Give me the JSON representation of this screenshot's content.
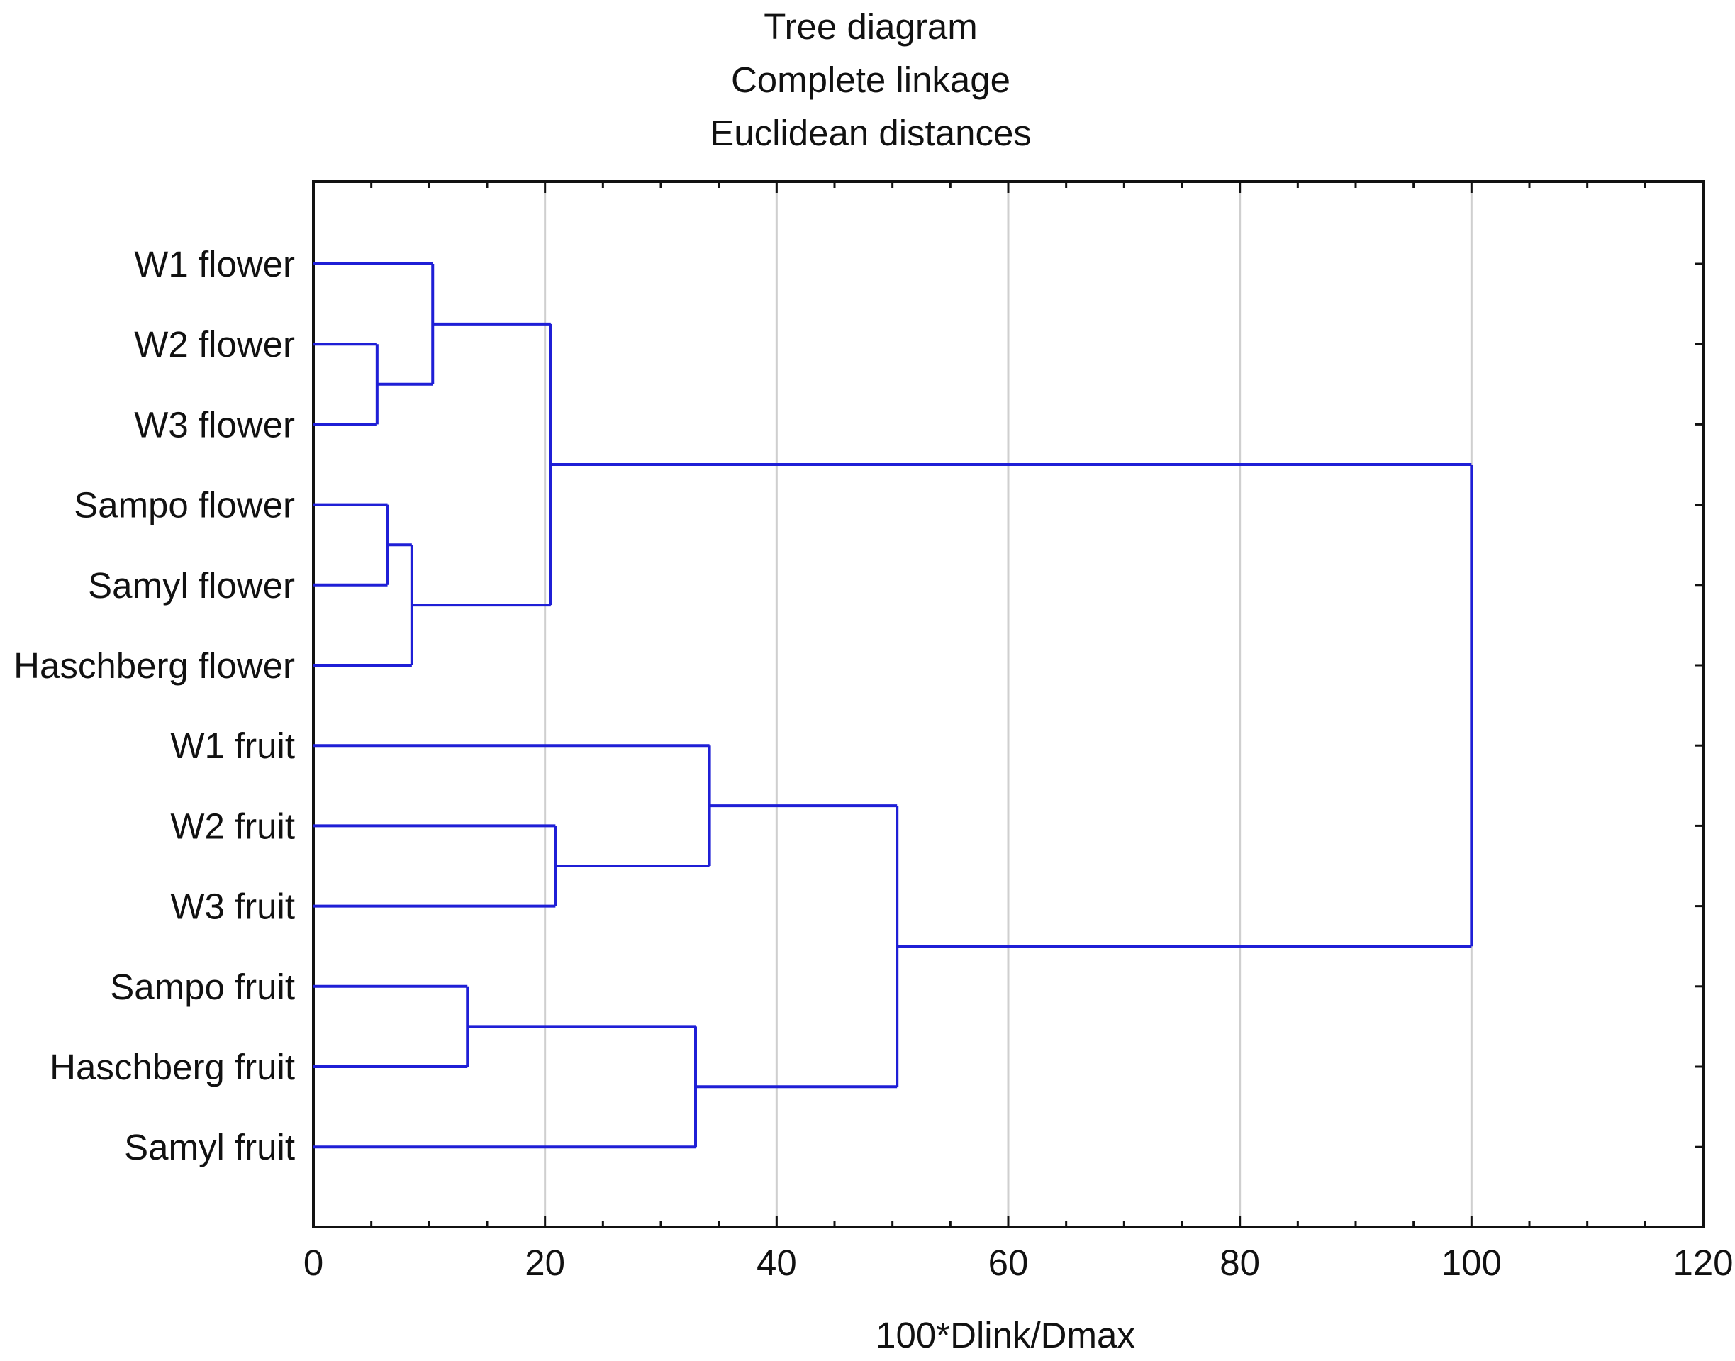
{
  "chart_data": {
    "type": "dendrogram",
    "title": [
      "Tree diagram",
      "Complete linkage",
      "Euclidean distances"
    ],
    "xlabel": "100*Dlink/Dmax",
    "ylabel": "",
    "xlim": [
      0,
      120
    ],
    "x_ticks": [
      0,
      20,
      40,
      60,
      80,
      100,
      120
    ],
    "x_tick_labels": [
      "0",
      "20",
      "40",
      "60",
      "80",
      "100",
      "120"
    ],
    "grid": true,
    "orientation": "horizontal",
    "leaves": [
      "W1 flower",
      "W2 flower",
      "W3 flower",
      "Sampo flower",
      "Samyl flower",
      "Haschberg flower",
      "W1 fruit",
      "W2 fruit",
      "W3 fruit",
      "Sampo fruit",
      "Haschberg fruit",
      "Samyl fruit"
    ],
    "merges": [
      {
        "a": "W2 flower",
        "b": "W3 flower",
        "height": 5.5
      },
      {
        "a": "Sampo flower",
        "b": "Samyl flower",
        "height": 6.4
      },
      {
        "a": "Sampo flower+Samyl flower",
        "b": "Haschberg flower",
        "height": 8.5
      },
      {
        "a": "W1 flower",
        "b": "W2 flower+W3 flower",
        "height": 10.3
      },
      {
        "a": "Sampo fruit",
        "b": "Haschberg fruit",
        "height": 13.3
      },
      {
        "a": "W1 flower group",
        "b": "Sampo flower group",
        "height": 20.5
      },
      {
        "a": "W2 fruit",
        "b": "W3 fruit",
        "height": 20.9
      },
      {
        "a": "Sampo fruit+Haschberg fruit",
        "b": "Samyl fruit",
        "height": 33.0
      },
      {
        "a": "W1 fruit",
        "b": "W2 fruit+W3 fruit",
        "height": 34.2
      },
      {
        "a": "W fruit group",
        "b": "Sampo fruit group",
        "height": 50.4
      },
      {
        "a": "flower cluster",
        "b": "fruit cluster",
        "height": 100.0
      }
    ],
    "colors": {
      "branches": "#1f1fd6",
      "grid": "#cfcfcf",
      "axes": "#111111"
    }
  }
}
